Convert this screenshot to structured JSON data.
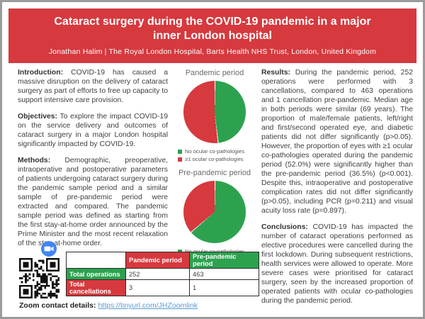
{
  "poster": {
    "title": "Cataract surgery during the COVID-19 pandemic in a major inner London hospital",
    "authors": "Jonathan Halim  |  The Royal London Hospital, Barts Health NHS Trust, London, United Kingdom"
  },
  "left": {
    "intro_label": "Introduction:",
    "intro_text": "COVID-19 has caused a massive disruption on the delivery of cataract surgery as part of efforts to free up capacity to support intensive care provision.",
    "objectives_label": "Objectives:",
    "objectives_text": "To explore the impact COVID-19 on the service delivery and outcomes of cataract surgery in a major London hospital significantly impacted by COVID-19.",
    "methods_label": "Methods:",
    "methods_text": "Demographic, preoperative, intraoperative and postoperative parameters of patients undergoing cataract surgery during the pandemic sample period and a similar sample of pre-pandemic period were extracted and compared. The pandemic sample period was defined as starting from the first stay-at-home order announced by the Prime Minister and the most recent relaxation of the stay-at-home order."
  },
  "right": {
    "results_label": "Results:",
    "results_text": "During the pandemic period, 252 operations were performed with 3 cancellations, compared to 463 operations and 1 cancellation pre-pandemic. Median age in both periods were similar (69 years). The proportion of male/female patients, left/right and first/second operated eye, and diabetic patients did not differ significantly (p>0.05). However, the proportion of eyes with ≥1 ocular co-pathologies operated during the pandemic period (52.0%) were significantly higher than the pre-pandemic period (36.5%) (p<0.001). Despite this, intraoperative and postoperative complication rates did not differ significantly (p>0.05), including PCR (p=0.211) and visual acuity loss rate (p=0.897).",
    "conclusions_label": "Conclusions:",
    "conclusions_text": "COVID-19 has impacted the number of cataract operations performed as elective procedures were cancelled during the first lockdown. During subsequent restrictions, health services were allowed to operate. More severe cases were prioritised for cataract surgery, seen by the increased proportion of operated patients with ocular co-pathologies during the pandemic period."
  },
  "chart_data": [
    {
      "type": "pie",
      "title": "Pandemic period",
      "labels": [
        "No ocular co-pathologies",
        "≥1 ocular co-pathologies"
      ],
      "values": [
        48.0,
        52.0
      ],
      "unit": "percent",
      "colors": [
        "#2ca24f",
        "#d6393e"
      ],
      "legend_position": "bottom-left"
    },
    {
      "type": "pie",
      "title": "Pre-pandemic period",
      "labels": [
        "No ocular co-pathologies",
        "≥1 ocular co-pathologies"
      ],
      "values": [
        63.5,
        36.5
      ],
      "unit": "percent",
      "colors": [
        "#2ca24f",
        "#d6393e"
      ],
      "legend_position": "bottom-left"
    }
  ],
  "table": {
    "columns": [
      "",
      "Pandemic period",
      "Pre-pandemic period"
    ],
    "rows": [
      {
        "label": "Total operations",
        "values": [
          "252",
          "463"
        ]
      },
      {
        "label": "Total cancellations",
        "values": [
          "3",
          "1"
        ]
      }
    ]
  },
  "footer": {
    "contact_label": "Zoom contact details:",
    "contact_link": "https://tinyurl.com/JHZoomlink"
  },
  "icons": {
    "zoom_video_icon": "zoom-video-camera",
    "qr_code": "qr-code"
  },
  "colors": {
    "accent_red": "#d6393e",
    "accent_green": "#2ca24f",
    "frame_gray": "#9b9b9b",
    "link_blue": "#5b9bd5"
  }
}
